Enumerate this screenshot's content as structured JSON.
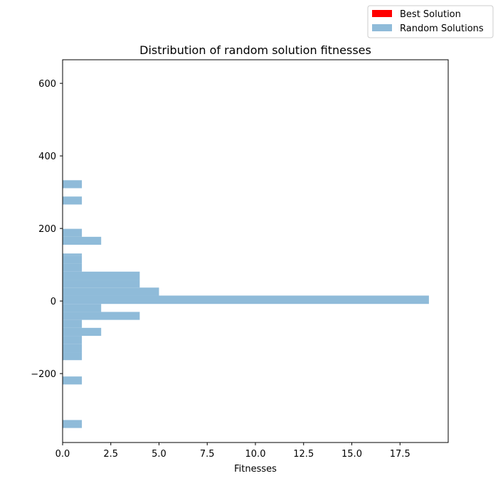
{
  "chart_data": {
    "type": "bar",
    "orientation": "horizontal",
    "title": "Distribution of random solution fitnesses",
    "xlabel": "Fitnesses",
    "ylabel": "",
    "xlim": [
      0,
      20
    ],
    "ylim": [
      -390,
      665
    ],
    "x_ticks": [
      0,
      2.5,
      5,
      7.5,
      10,
      12.5,
      15,
      17.5
    ],
    "x_tick_labels": [
      "0.0",
      "2.5",
      "5.0",
      "7.5",
      "10.0",
      "12.5",
      "15.0",
      "17.5"
    ],
    "y_ticks": [
      -200,
      0,
      200,
      400,
      600
    ],
    "y_tick_labels": [
      "−200",
      "0",
      "200",
      "400",
      "600"
    ],
    "grid": false,
    "legend_position": "top-right (outside axes)",
    "colors": {
      "best": "#ff0000",
      "random": "#8fbbd9"
    },
    "series": [
      {
        "name": "Best Solution",
        "bins": []
      },
      {
        "name": "Random Solutions",
        "bins": [
          {
            "y0": -350,
            "y1": -328,
            "count": 1
          },
          {
            "y0": -230,
            "y1": -208,
            "count": 1
          },
          {
            "y0": -163,
            "y1": -141,
            "count": 1
          },
          {
            "y0": -141,
            "y1": -119,
            "count": 1
          },
          {
            "y0": -119,
            "y1": -96,
            "count": 1
          },
          {
            "y0": -96,
            "y1": -74,
            "count": 2
          },
          {
            "y0": -74,
            "y1": -52,
            "count": 1
          },
          {
            "y0": -52,
            "y1": -30,
            "count": 4
          },
          {
            "y0": -30,
            "y1": -8,
            "count": 2
          },
          {
            "y0": -8,
            "y1": 15,
            "count": 19
          },
          {
            "y0": 15,
            "y1": 37,
            "count": 5
          },
          {
            "y0": 37,
            "y1": 59,
            "count": 4
          },
          {
            "y0": 59,
            "y1": 81,
            "count": 4
          },
          {
            "y0": 81,
            "y1": 103,
            "count": 1
          },
          {
            "y0": 103,
            "y1": 125,
            "count": 1
          },
          {
            "y0": 125,
            "y1": 131,
            "count": 1
          },
          {
            "y0": 155,
            "y1": 177,
            "count": 2
          },
          {
            "y0": 177,
            "y1": 199,
            "count": 1
          },
          {
            "y0": 266,
            "y1": 288,
            "count": 1
          },
          {
            "y0": 311,
            "y1": 333,
            "count": 1
          }
        ]
      }
    ]
  }
}
